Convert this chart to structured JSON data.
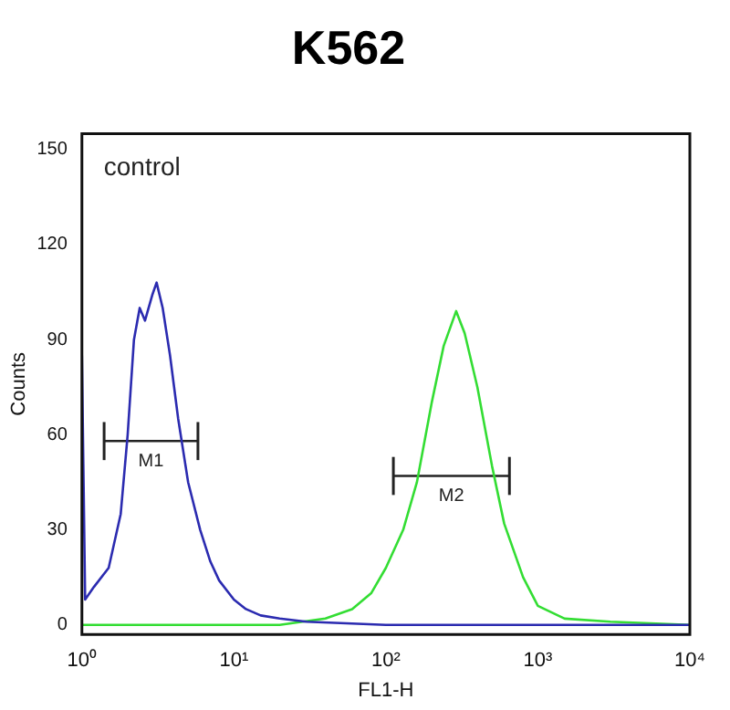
{
  "chart_data": {
    "type": "line",
    "title": "K562",
    "xlabel": "FL1-H",
    "ylabel": "Counts",
    "log": "x",
    "grid": false,
    "legend": false,
    "marker": "none",
    "line_style": "solid",
    "xlim": [
      1,
      10000
    ],
    "xticks": [
      {
        "value": 1,
        "label": "10⁰"
      },
      {
        "value": 10,
        "label": "10¹"
      },
      {
        "value": 100,
        "label": "10²"
      },
      {
        "value": 1000,
        "label": "10³"
      },
      {
        "value": 10000,
        "label": "10⁴"
      }
    ],
    "ylim": [
      -3,
      155
    ],
    "yticks": [
      0,
      30,
      60,
      90,
      120,
      150
    ],
    "annotations": [
      "control"
    ],
    "series": [
      {
        "color": "#2b2bb0",
        "x": [
          1,
          1.05,
          1.2,
          1.5,
          1.8,
          2,
          2.2,
          2.4,
          2.6,
          2.9,
          3.1,
          3.4,
          3.8,
          4.3,
          5,
          6,
          7,
          8,
          10,
          12,
          15,
          20,
          30,
          100,
          1000,
          10000
        ],
        "values": [
          85,
          8,
          12,
          18,
          35,
          60,
          90,
          100,
          96,
          104,
          108,
          100,
          85,
          65,
          45,
          30,
          20,
          14,
          8,
          5,
          3,
          2,
          1,
          0,
          0,
          0
        ]
      },
      {
        "color": "#33dd33",
        "x": [
          1,
          20,
          40,
          60,
          80,
          100,
          130,
          160,
          200,
          240,
          290,
          330,
          400,
          500,
          600,
          800,
          1000,
          1500,
          3000,
          10000
        ],
        "values": [
          0,
          0,
          2,
          5,
          10,
          18,
          30,
          45,
          70,
          88,
          99,
          92,
          75,
          50,
          32,
          15,
          6,
          2,
          1,
          0
        ]
      },
      {
        "name": "M1",
        "color": "#222222",
        "x": [
          1.4,
          5.8
        ],
        "values": [
          58,
          58
        ],
        "errors": [
          6,
          6
        ]
      },
      {
        "name": "M2",
        "color": "#222222",
        "x": [
          112,
          650
        ],
        "values": [
          47,
          47
        ],
        "errors": [
          6,
          6
        ]
      }
    ]
  }
}
